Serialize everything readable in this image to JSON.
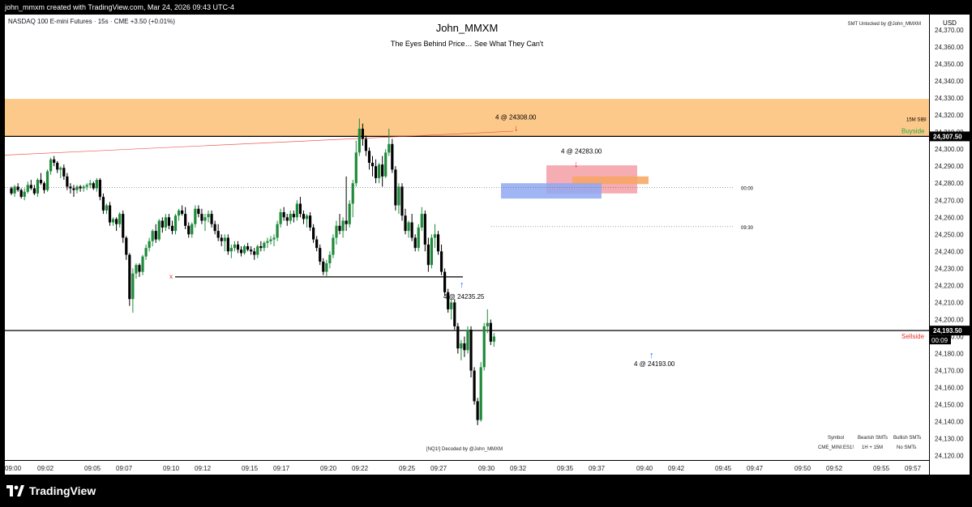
{
  "header": {
    "created_by": "john_mmxm created with TradingView.com, Mar 24, 2026 09:43 UTC-4"
  },
  "legend": {
    "symbol_line": "NASDAQ 100 E-mini Futures · 15s · CME  +3.50 (+0.01%)"
  },
  "titles": {
    "main": "John_MMXM",
    "sub": "The Eyes Behind Price… See What They Can't"
  },
  "watermarks": {
    "smt_unlocked": "SMT Unlocked by @John_MMXM",
    "decoded": "[NQ1!] Decoded by @John_MMXM"
  },
  "smt_table": {
    "headers": [
      "Symbol",
      "Bearish SMTs",
      "Bullish SMTs"
    ],
    "row": [
      "CME_MINI:ES1!",
      "1H + 15M",
      "No SMTs"
    ]
  },
  "price_axis": {
    "currency": "USD",
    "ticks": [
      "24,370.00",
      "24,360.00",
      "24,350.00",
      "24,340.00",
      "24,330.00",
      "24,320.00",
      "24,310.00",
      "24,300.00",
      "24,290.00",
      "24,280.00",
      "24,270.00",
      "24,260.00",
      "24,250.00",
      "24,240.00",
      "24,230.00",
      "24,220.00",
      "24,210.00",
      "24,200.00",
      "24,190.00",
      "24,180.00",
      "24,170.00",
      "24,160.00",
      "24,150.00",
      "24,140.00",
      "24,130.00",
      "24,120.00"
    ],
    "buyside_label": "24,307.50",
    "sellside_label": "24,193.50",
    "countdown": "00:09"
  },
  "time_axis": {
    "ticks": [
      "09:00",
      "09:02",
      "09:05",
      "09:07",
      "09:10",
      "09:12",
      "09:15",
      "09:17",
      "09:20",
      "09:22",
      "09:25",
      "09:27",
      "09:30",
      "09:32",
      "09:35",
      "09:37",
      "09:40",
      "09:42",
      "09:45",
      "09:47",
      "09:50",
      "09:52",
      "09:55",
      "09:57"
    ]
  },
  "annotations": {
    "high_label": "4 @ 24308.00",
    "lower_high_label": "4 @ 24283.00",
    "low_label": "4 @ 24235.25",
    "lower_low_label": "4 @ 24193.00",
    "sibi_label": "15M SIBI",
    "buyside": "Buyside",
    "sellside": "Sellside",
    "time_0000": "00:00",
    "time_0930": "09:30",
    "x_marker": "x"
  },
  "colors": {
    "up": "#1e8a3a",
    "down": "#000000",
    "sibi_zone": "#fcc98a",
    "bearish_fvg": "#f4a3ab",
    "bullish_fvg": "#8fa8f2",
    "buyside": "#26a640",
    "sellside": "#e5332a",
    "arrow_up": "#2962ff",
    "arrow_down": "#e5332a"
  },
  "chart_data": {
    "type": "candlestick",
    "interval": "15s",
    "symbol": "NASDAQ 100 E-mini Futures",
    "ylim": [
      24117.5,
      24379
    ],
    "x_range": [
      "09:00",
      "09:58"
    ],
    "levels": {
      "buyside": 24307.5,
      "sellside": 24193.5,
      "midnight_open": 24277.5,
      "ny_open_0930": 24254.5,
      "swing_low": 24225.0
    },
    "zones": [
      {
        "name": "15M SIBI",
        "from": 24307.5,
        "to": 24329.5
      },
      {
        "name": "bearish FVG",
        "from": 24274.0,
        "to": 24290.5
      },
      {
        "name": "bullish FVG",
        "from": 24271.0,
        "to": 24280.0
      },
      {
        "name": "premium",
        "from": 24279.5,
        "to": 24284.0
      }
    ],
    "candles": [
      [
        24277,
        24278,
        24273,
        24274
      ],
      [
        24274,
        24279,
        24272,
        24278
      ],
      [
        24278,
        24280,
        24275,
        24276
      ],
      [
        24276,
        24277,
        24271,
        24272
      ],
      [
        24272,
        24277,
        24270,
        24275
      ],
      [
        24275,
        24281,
        24274,
        24279
      ],
      [
        24279,
        24282,
        24276,
        24277
      ],
      [
        24277,
        24279,
        24273,
        24274
      ],
      [
        24274,
        24283,
        24272,
        24282
      ],
      [
        24282,
        24286,
        24279,
        24280
      ],
      [
        24280,
        24281,
        24274,
        24276
      ],
      [
        24276,
        24288,
        24275,
        24287
      ],
      [
        24287,
        24295,
        24285,
        24294
      ],
      [
        24294,
        24296,
        24290,
        24292
      ],
      [
        24292,
        24293,
        24286,
        24288
      ],
      [
        24288,
        24290,
        24283,
        24289
      ],
      [
        24289,
        24291,
        24282,
        24284
      ],
      [
        24284,
        24286,
        24276,
        24278
      ],
      [
        24278,
        24280,
        24274,
        24277
      ],
      [
        24277,
        24279,
        24272,
        24276
      ],
      [
        24276,
        24279,
        24274,
        24278
      ],
      [
        24278,
        24279,
        24275,
        24277
      ],
      [
        24277,
        24279,
        24275,
        24278
      ],
      [
        24278,
        24280,
        24276,
        24279
      ],
      [
        24279,
        24282,
        24277,
        24280
      ],
      [
        24280,
        24281,
        24276,
        24277
      ],
      [
        24277,
        24283,
        24275,
        24282
      ],
      [
        24282,
        24283,
        24270,
        24272
      ],
      [
        24272,
        24274,
        24262,
        24264
      ],
      [
        24264,
        24268,
        24262,
        24267
      ],
      [
        24267,
        24269,
        24255,
        24257
      ],
      [
        24257,
        24260,
        24255,
        24259
      ],
      [
        24259,
        24260,
        24252,
        24256
      ],
      [
        24256,
        24263,
        24254,
        24262
      ],
      [
        24262,
        24264,
        24245,
        24248
      ],
      [
        24248,
        24249,
        24235,
        24238
      ],
      [
        24238,
        24239,
        24208,
        24212
      ],
      [
        24212,
        24230,
        24204,
        24227
      ],
      [
        24227,
        24233,
        24224,
        24232
      ],
      [
        24232,
        24233,
        24225,
        24228
      ],
      [
        24228,
        24238,
        24226,
        24237
      ],
      [
        24237,
        24244,
        24235,
        24242
      ],
      [
        24242,
        24248,
        24240,
        24246
      ],
      [
        24246,
        24253,
        24243,
        24252
      ],
      [
        24252,
        24256,
        24245,
        24247
      ],
      [
        24247,
        24259,
        24246,
        24258
      ],
      [
        24258,
        24260,
        24251,
        24254
      ],
      [
        24254,
        24262,
        24252,
        24260
      ],
      [
        24260,
        24262,
        24253,
        24255
      ],
      [
        24255,
        24258,
        24250,
        24252
      ],
      [
        24252,
        24262,
        24250,
        24261
      ],
      [
        24261,
        24265,
        24258,
        24264
      ],
      [
        24264,
        24267,
        24261,
        24262
      ],
      [
        24262,
        24266,
        24253,
        24255
      ],
      [
        24255,
        24257,
        24248,
        24250
      ],
      [
        24250,
        24257,
        24248,
        24256
      ],
      [
        24256,
        24267,
        24254,
        24265
      ],
      [
        24265,
        24267,
        24260,
        24262
      ],
      [
        24262,
        24265,
        24256,
        24258
      ],
      [
        24258,
        24262,
        24252,
        24260
      ],
      [
        24260,
        24264,
        24257,
        24262
      ],
      [
        24262,
        24264,
        24254,
        24256
      ],
      [
        24256,
        24258,
        24250,
        24252
      ],
      [
        24252,
        24256,
        24246,
        24248
      ],
      [
        24248,
        24250,
        24243,
        24246
      ],
      [
        24246,
        24250,
        24240,
        24248
      ],
      [
        24248,
        24250,
        24238,
        24240
      ],
      [
        24240,
        24244,
        24236,
        24242
      ],
      [
        24242,
        24246,
        24240,
        24244
      ],
      [
        24244,
        24246,
        24239,
        24241
      ],
      [
        24241,
        24243,
        24237,
        24239
      ],
      [
        24239,
        24244,
        24238,
        24243
      ],
      [
        24243,
        24245,
        24240,
        24241
      ],
      [
        24241,
        24243,
        24238,
        24240
      ],
      [
        24240,
        24242,
        24235,
        24238
      ],
      [
        24238,
        24244,
        24236,
        24243
      ],
      [
        24243,
        24246,
        24240,
        24242
      ],
      [
        24242,
        24246,
        24240,
        24245
      ],
      [
        24245,
        24248,
        24242,
        24246
      ],
      [
        24246,
        24249,
        24244,
        24247
      ],
      [
        24247,
        24250,
        24243,
        24248
      ],
      [
        24248,
        24258,
        24246,
        24256
      ],
      [
        24256,
        24265,
        24254,
        24263
      ],
      [
        24263,
        24266,
        24258,
        24260
      ],
      [
        24260,
        24262,
        24255,
        24258
      ],
      [
        24258,
        24264,
        24256,
        24262
      ],
      [
        24262,
        24264,
        24257,
        24260
      ],
      [
        24260,
        24270,
        24258,
        24268
      ],
      [
        24268,
        24272,
        24260,
        24262
      ],
      [
        24262,
        24264,
        24256,
        24259
      ],
      [
        24259,
        24262,
        24254,
        24261
      ],
      [
        24261,
        24263,
        24252,
        24254
      ],
      [
        24254,
        24256,
        24245,
        24247
      ],
      [
        24247,
        24249,
        24240,
        24242
      ],
      [
        24242,
        24244,
        24232,
        24234
      ],
      [
        24234,
        24236,
        24226,
        24228
      ],
      [
        24228,
        24235,
        24225,
        24233
      ],
      [
        24233,
        24240,
        24230,
        24238
      ],
      [
        24238,
        24250,
        24236,
        24248
      ],
      [
        24248,
        24258,
        24244,
        24255
      ],
      [
        24255,
        24262,
        24250,
        24252
      ],
      [
        24252,
        24260,
        24248,
        24258
      ],
      [
        24258,
        24284,
        24252,
        24256
      ],
      [
        24256,
        24270,
        24254,
        24268
      ],
      [
        24268,
        24282,
        24260,
        24280
      ],
      [
        24280,
        24305,
        24278,
        24298
      ],
      [
        24298,
        24318,
        24296,
        24312
      ],
      [
        24312,
        24315,
        24302,
        24306
      ],
      [
        24306,
        24308,
        24296,
        24299
      ],
      [
        24299,
        24301,
        24288,
        24292
      ],
      [
        24292,
        24296,
        24284,
        24290
      ],
      [
        24290,
        24294,
        24280,
        24283
      ],
      [
        24283,
        24292,
        24280,
        24291
      ],
      [
        24291,
        24296,
        24278,
        24284
      ],
      [
        24284,
        24300,
        24283,
        24298
      ],
      [
        24298,
        24312,
        24296,
        24303
      ],
      [
        24303,
        24306,
        24286,
        24288
      ],
      [
        24288,
        24290,
        24264,
        24267
      ],
      [
        24267,
        24280,
        24262,
        24278
      ],
      [
        24278,
        24280,
        24258,
        24261
      ],
      [
        24261,
        24265,
        24250,
        24252
      ],
      [
        24252,
        24258,
        24248,
        24257
      ],
      [
        24257,
        24262,
        24246,
        24248
      ],
      [
        24248,
        24250,
        24240,
        24242
      ],
      [
        24242,
        24256,
        24240,
        24254
      ],
      [
        24254,
        24266,
        24252,
        24262
      ],
      [
        24262,
        24264,
        24240,
        24244
      ],
      [
        24244,
        24248,
        24228,
        24232
      ],
      [
        24232,
        24250,
        24230,
        24248
      ],
      [
        24248,
        24256,
        24242,
        24250
      ],
      [
        24250,
        24252,
        24238,
        24240
      ],
      [
        24240,
        24244,
        24226,
        24228
      ],
      [
        24228,
        24230,
        24214,
        24216
      ],
      [
        24216,
        24218,
        24204,
        24206
      ],
      [
        24206,
        24212,
        24200,
        24210
      ],
      [
        24210,
        24212,
        24194,
        24196
      ],
      [
        24196,
        24198,
        24180,
        24183
      ],
      [
        24183,
        24188,
        24176,
        24186
      ],
      [
        24186,
        24190,
        24178,
        24182
      ],
      [
        24182,
        24196,
        24180,
        24194
      ],
      [
        24194,
        24196,
        24166,
        24170
      ],
      [
        24170,
        24172,
        24150,
        24152
      ],
      [
        24152,
        24154,
        24138,
        24141
      ],
      [
        24141,
        24175,
        24140,
        24172
      ],
      [
        24172,
        24198,
        24170,
        24196
      ],
      [
        24196,
        24206,
        24192,
        24198
      ],
      [
        24198,
        24200,
        24185,
        24187
      ],
      [
        24187,
        24192,
        24184,
        24190
      ]
    ]
  }
}
